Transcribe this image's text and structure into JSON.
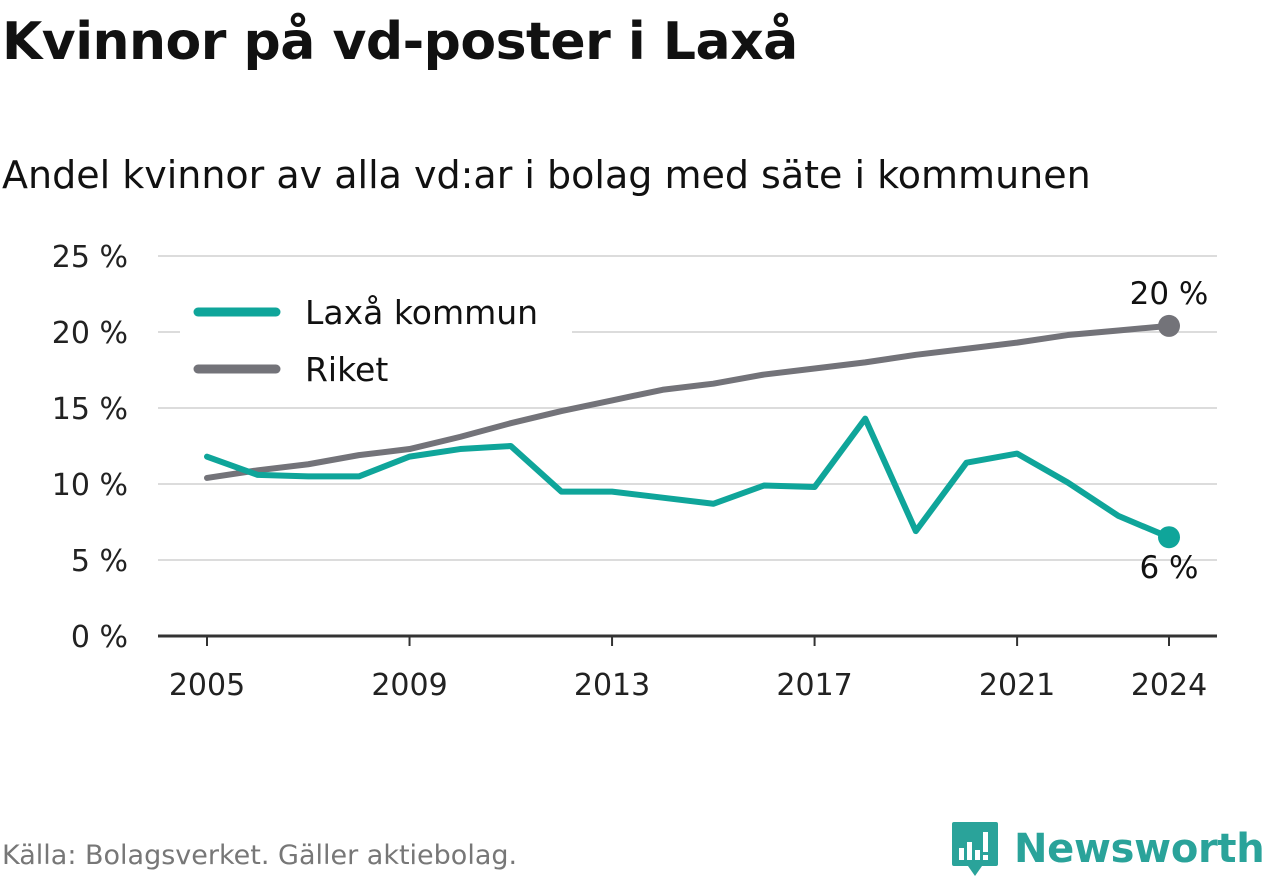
{
  "header": {
    "title": "Kvinnor på vd-poster i Laxå",
    "subtitle": "Andel kvinnor av alla vd:ar i bolag med säte i kommunen"
  },
  "footer": {
    "source": "Källa: Bolagsverket. Gäller aktiebolag.",
    "brand": "Newsworthy"
  },
  "colors": {
    "laxa": "#0fa59a",
    "riket": "#737379",
    "grid": "#dcdcdc",
    "axis": "#333333",
    "brand": "#2aa39a"
  },
  "chart_data": {
    "type": "line",
    "x": [
      2005,
      2006,
      2007,
      2008,
      2009,
      2010,
      2011,
      2012,
      2013,
      2014,
      2015,
      2016,
      2017,
      2018,
      2019,
      2020,
      2021,
      2022,
      2023,
      2024
    ],
    "series": [
      {
        "name": "Laxå kommun",
        "color": "#0fa59a",
        "values": [
          11.8,
          10.6,
          10.5,
          10.5,
          11.8,
          12.3,
          12.5,
          9.5,
          9.5,
          9.1,
          8.7,
          9.9,
          9.8,
          14.3,
          6.9,
          11.4,
          12.0,
          10.1,
          7.9,
          6.5
        ],
        "end_label": "6 %"
      },
      {
        "name": "Riket",
        "color": "#737379",
        "values": [
          10.4,
          10.9,
          11.3,
          11.9,
          12.3,
          13.1,
          14.0,
          14.8,
          15.5,
          16.2,
          16.6,
          17.2,
          17.6,
          18.0,
          18.5,
          18.9,
          19.3,
          19.8,
          20.1,
          20.4
        ],
        "end_label": "20 %"
      }
    ],
    "y_ticks": [
      0,
      5,
      10,
      15,
      20,
      25
    ],
    "y_tick_labels": [
      "0 %",
      "5 %",
      "10 %",
      "15 %",
      "20 %",
      "25 %"
    ],
    "x_ticks": [
      2005,
      2009,
      2013,
      2017,
      2021,
      2024
    ],
    "x_tick_labels": [
      "2005",
      "2009",
      "2013",
      "2017",
      "2021",
      "2024"
    ],
    "xlim": [
      2005,
      2024
    ],
    "ylim": [
      0,
      25
    ],
    "xlabel": "",
    "ylabel": "",
    "grid": true,
    "legend_position": "top-left"
  }
}
